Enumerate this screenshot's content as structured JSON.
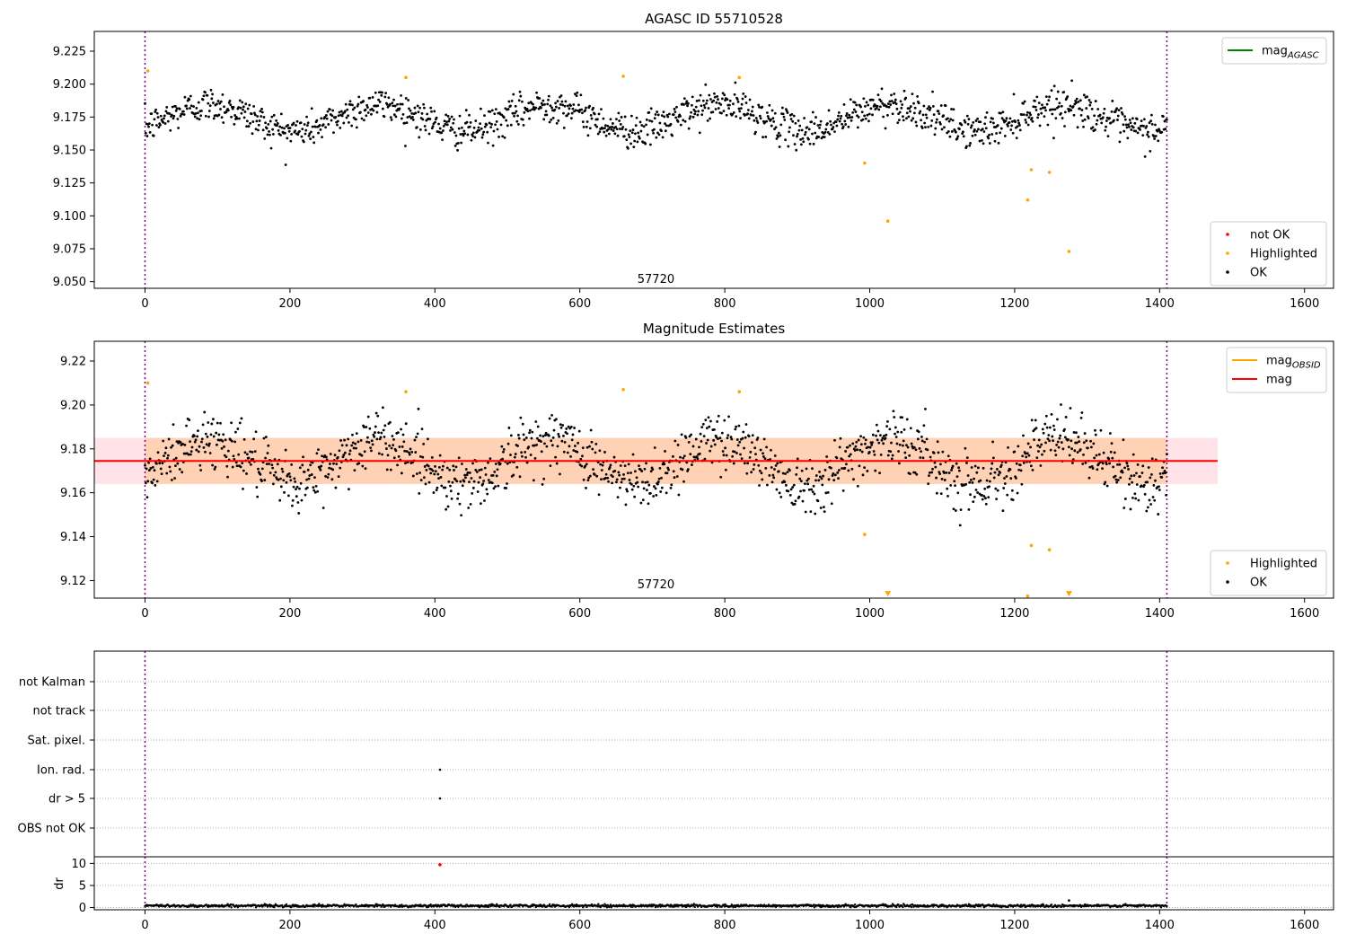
{
  "figure": {
    "colors": {
      "ok": "#000000",
      "highlighted": "#ffa500",
      "not_ok": "#ff0000",
      "mag_agasc": "#008000",
      "mag_obsid": "#ffa500",
      "mag": "#ff0000",
      "band_mag": "#ffc0cb",
      "band_obsid": "#ffc89a",
      "obsid_line": "#800080"
    }
  },
  "chart_data": [
    {
      "type": "scatter",
      "title": "AGASC ID 55710528",
      "xlim": [
        -70,
        1640
      ],
      "ylim": [
        9.045,
        9.24
      ],
      "xticks": [
        0,
        200,
        400,
        600,
        800,
        1000,
        1200,
        1400,
        1600
      ],
      "xtick_labels": [
        "0",
        "200",
        "400",
        "600",
        "800",
        "1000",
        "1200",
        "1400",
        "1600"
      ],
      "yticks": [
        9.05,
        9.075,
        9.1,
        9.125,
        9.15,
        9.175,
        9.2,
        9.225
      ],
      "ytick_labels": [
        "9.050",
        "9.075",
        "9.100",
        "9.125",
        "9.150",
        "9.175",
        "9.200",
        "9.225"
      ],
      "obsid_boundaries": [
        0,
        1410
      ],
      "obsid_label": {
        "text": "57720",
        "x": 705,
        "y": 9.049
      },
      "legend_top": {
        "entries": [
          {
            "label": "mag",
            "sub": "AGASC",
            "color_key": "mag_agasc"
          }
        ],
        "placement": "top-right"
      },
      "legend_bottom": {
        "entries": [
          {
            "label": "not OK",
            "color_key": "not_ok"
          },
          {
            "label": "Highlighted",
            "color_key": "highlighted"
          },
          {
            "label": "OK",
            "color_key": "ok"
          }
        ],
        "placement": "bottom-right"
      },
      "series": [
        {
          "name": "OK",
          "n": 1410,
          "x_range": [
            0,
            1410
          ],
          "mean": 9.1745,
          "amplitude": 0.01,
          "period": 235,
          "scatter": 0.0065
        },
        {
          "name": "Highlighted",
          "x": [
            4,
            360,
            660,
            820,
            993,
            1025,
            1218,
            1223,
            1248,
            1275
          ],
          "y": [
            9.21,
            9.205,
            9.206,
            9.205,
            9.14,
            9.096,
            9.112,
            9.135,
            9.133,
            9.073
          ]
        },
        {
          "name": "not OK",
          "x": [],
          "y": []
        }
      ]
    },
    {
      "type": "scatter",
      "title": "Magnitude Estimates",
      "xlim": [
        -70,
        1640
      ],
      "ylim": [
        9.112,
        9.229
      ],
      "xticks": [
        0,
        200,
        400,
        600,
        800,
        1000,
        1200,
        1400,
        1600
      ],
      "xtick_labels": [
        "0",
        "200",
        "400",
        "600",
        "800",
        "1000",
        "1200",
        "1400",
        "1600"
      ],
      "yticks": [
        9.12,
        9.14,
        9.16,
        9.18,
        9.2,
        9.22
      ],
      "ytick_labels": [
        "9.12",
        "9.14",
        "9.16",
        "9.18",
        "9.20",
        "9.22"
      ],
      "obsid_boundaries": [
        0,
        1410
      ],
      "obsid_label": {
        "text": "57720",
        "x": 705,
        "y": 9.114
      },
      "mag": {
        "value": 9.1745,
        "band": [
          9.164,
          9.185
        ],
        "x_range": [
          -70,
          1480
        ]
      },
      "mag_obsid": {
        "value": 9.1745,
        "band": [
          9.164,
          9.185
        ],
        "x_range": [
          0,
          1410
        ]
      },
      "legend_top": {
        "entries": [
          {
            "label": "mag",
            "sub": "OBSID",
            "color_key": "mag_obsid"
          },
          {
            "label": "mag",
            "color_key": "mag"
          }
        ],
        "placement": "top-right"
      },
      "legend_bottom": {
        "entries": [
          {
            "label": "Highlighted",
            "color_key": "highlighted"
          },
          {
            "label": "OK",
            "color_key": "ok"
          }
        ],
        "placement": "bottom-right"
      },
      "series": [
        {
          "name": "OK",
          "n": 1410,
          "x_range": [
            0,
            1410
          ],
          "mean": 9.1745,
          "amplitude": 0.01,
          "period": 235,
          "scatter": 0.0065
        },
        {
          "name": "Highlighted",
          "x": [
            4,
            360,
            660,
            820,
            993,
            1218,
            1223,
            1248
          ],
          "y": [
            9.21,
            9.206,
            9.207,
            9.206,
            9.141,
            9.113,
            9.136,
            9.134
          ]
        },
        {
          "name": "Highlighted (below range)",
          "x": [
            1025,
            1275
          ],
          "y": [
            9.114,
            9.114
          ]
        }
      ]
    },
    {
      "type": "scatter",
      "xlim": [
        -70,
        1640
      ],
      "category_labels": [
        "not Kalman",
        "not track",
        "Sat. pixel.",
        "Ion. rad.",
        "dr > 5",
        "OBS not OK"
      ],
      "flags": [
        {
          "category": "Ion. rad.",
          "x": [
            407
          ]
        },
        {
          "category": "dr > 5",
          "x": [
            407
          ]
        }
      ],
      "obsid_boundaries": [
        0,
        1410
      ]
    },
    {
      "type": "scatter",
      "ylabel": "dr",
      "xlim": [
        -70,
        1640
      ],
      "ylim": [
        -0.5,
        11.5
      ],
      "xticks": [
        0,
        200,
        400,
        600,
        800,
        1000,
        1200,
        1400,
        1600
      ],
      "xtick_labels": [
        "0",
        "200",
        "400",
        "600",
        "800",
        "1000",
        "1200",
        "1400",
        "1600"
      ],
      "yticks": [
        0,
        5,
        10
      ],
      "ytick_labels": [
        "0",
        "5",
        "10"
      ],
      "obsid_boundaries": [
        0,
        1410
      ],
      "series": [
        {
          "name": "dr",
          "n": 1410,
          "x_range": [
            0,
            1410
          ],
          "mean": 0.4,
          "scatter": 0.15
        },
        {
          "name": "dr not OK",
          "x": [
            407
          ],
          "y": [
            9.7
          ]
        },
        {
          "name": "dr spike",
          "x": [
            1275
          ],
          "y": [
            1.6
          ]
        }
      ]
    }
  ]
}
